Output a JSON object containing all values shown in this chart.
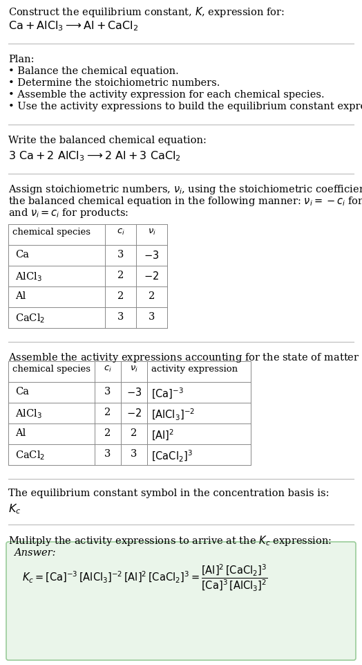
{
  "bg_color": "#ffffff",
  "text_color": "#000000",
  "title_line1": "Construct the equilibrium constant, $K$, expression for:",
  "title_line2": "$\\mathrm{Ca + AlCl_3 \\longrightarrow Al + CaCl_2}$",
  "plan_header": "Plan:",
  "balanced_header": "Write the balanced chemical equation:",
  "balanced_eq": "$3\\ \\mathrm{Ca} + 2\\ \\mathrm{AlCl_3} \\longrightarrow 2\\ \\mathrm{Al} + 3\\ \\mathrm{CaCl_2}$",
  "stoich_lines": [
    "Assign stoichiometric numbers, $\\nu_i$, using the stoichiometric coefficients, $c_i$, from",
    "the balanced chemical equation in the following manner: $\\nu_i = -c_i$ for reactants",
    "and $\\nu_i = c_i$ for products:"
  ],
  "activity_header": "Assemble the activity expressions accounting for the state of matter and $\\nu_i$:",
  "kc_header": "The equilibrium constant symbol in the concentration basis is:",
  "kc_symbol": "$K_c$",
  "multiply_header": "Mulitply the activity expressions to arrive at the $K_c$ expression:",
  "answer_label": "Answer:",
  "answer_box_color": "#eaf5ea",
  "font_size": 10.5,
  "font_size_small": 9.5,
  "font_size_eq": 11.5
}
